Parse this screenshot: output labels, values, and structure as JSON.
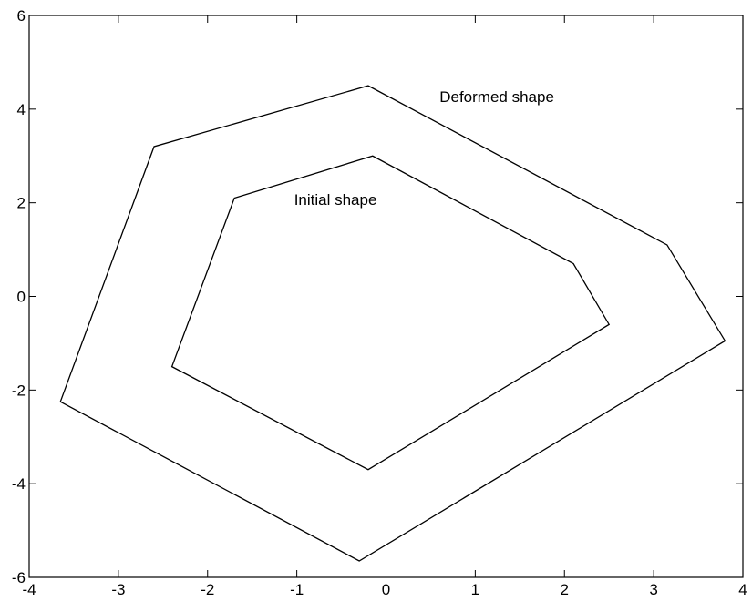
{
  "chart_data": {
    "type": "line",
    "title": "",
    "xlabel": "",
    "ylabel": "",
    "xlim": [
      -4,
      4
    ],
    "ylim": [
      -6,
      6
    ],
    "x_ticks": [
      -4,
      -3,
      -2,
      -1,
      0,
      1,
      2,
      3,
      4
    ],
    "y_ticks": [
      -6,
      -4,
      -2,
      0,
      2,
      4,
      6
    ],
    "x_tick_labels": [
      "-4",
      "-3",
      "-2",
      "-1",
      "0",
      "1",
      "2",
      "3",
      "4"
    ],
    "y_tick_labels": [
      "-6",
      "-4",
      "-2",
      "0",
      "2",
      "4",
      "6"
    ],
    "grid": false,
    "line_color": "#000000",
    "series": [
      {
        "closed": true,
        "points": [
          [
            -0.2,
            4.5
          ],
          [
            3.15,
            1.1
          ],
          [
            3.8,
            -0.95
          ],
          [
            -0.3,
            -5.65
          ],
          [
            -3.65,
            -2.25
          ],
          [
            -2.6,
            3.2
          ]
        ]
      },
      {
        "closed": true,
        "points": [
          [
            -0.15,
            3.0
          ],
          [
            2.1,
            0.7
          ],
          [
            2.5,
            -0.6
          ],
          [
            -0.2,
            -3.7
          ],
          [
            -2.4,
            -1.5
          ],
          [
            -1.7,
            2.1
          ]
        ]
      }
    ],
    "annotations": [
      {
        "text": "Deformed shape",
        "x": 0.6,
        "y": 4.15
      },
      {
        "text": "Initial shape",
        "x": -1.03,
        "y": 1.95
      }
    ]
  }
}
